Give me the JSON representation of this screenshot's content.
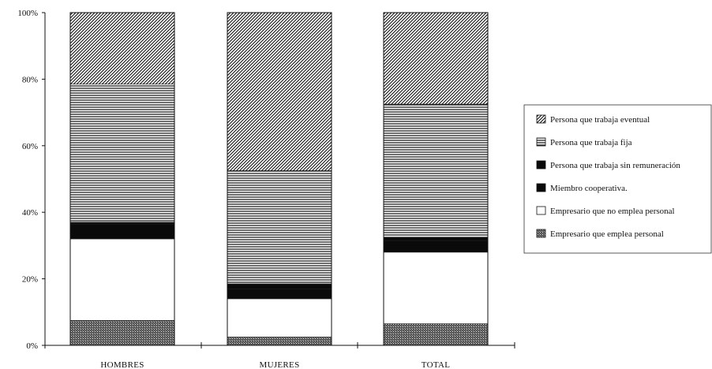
{
  "chart_data": {
    "type": "bar",
    "stacked": true,
    "categories": [
      "HOMBRES",
      "MUJERES",
      "TOTAL"
    ],
    "y_ticks": [
      "0%",
      "20%",
      "40%",
      "60%",
      "80%",
      "100%"
    ],
    "ylim": [
      0,
      100
    ],
    "legend_position": "right",
    "series": [
      {
        "name": "Empresario que emplea personal",
        "pattern": "crosshatch",
        "values": [
          7.5,
          2.5,
          6.5
        ]
      },
      {
        "name": "Empresario que no emplea personal",
        "pattern": "white",
        "values": [
          24.5,
          11.5,
          21.5
        ]
      },
      {
        "name": "Miembro cooperativa.",
        "pattern": "solid",
        "values": [
          4.5,
          3.0,
          3.5
        ]
      },
      {
        "name": "Persona que trabaja sin remuneración",
        "pattern": "solid",
        "values": [
          0.5,
          1.5,
          1.0
        ]
      },
      {
        "name": "Persona que trabaja fija",
        "pattern": "horizontal",
        "values": [
          41.5,
          34.0,
          40.0
        ]
      },
      {
        "name": "Persona que trabaja eventual",
        "pattern": "diagonal",
        "values": [
          21.5,
          47.5,
          27.5
        ]
      }
    ],
    "legend_order": [
      5,
      4,
      3,
      2,
      1,
      0
    ]
  }
}
